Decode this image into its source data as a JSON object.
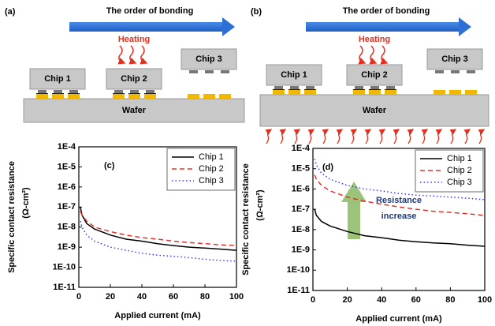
{
  "figure_panels": [
    {
      "label": "(a)",
      "arrow_text": "The order of bonding",
      "heating": "Heating",
      "chips": [
        "Chip 1",
        "Chip 2",
        "Chip 3"
      ],
      "wafer": "Wafer"
    },
    {
      "label": "(b)",
      "arrow_text": "The order of bonding",
      "heating": "Heating",
      "chips": [
        "Chip 1",
        "Chip 2",
        "Chip 3"
      ],
      "wafer": "Wafer"
    }
  ],
  "chart_data": [
    {
      "type": "line",
      "panel_label": "(c)",
      "xlabel": "Applied current (mA)",
      "ylabel": [
        "Specific contact resistance",
        "(Ω-cm²)"
      ],
      "x": [
        1,
        2,
        5,
        10,
        20,
        30,
        40,
        50,
        60,
        70,
        80,
        90,
        100
      ],
      "series": [
        {
          "name": "Chip 1",
          "color": "#000000",
          "line_style": "solid",
          "values": [
            1e-07,
            4e-08,
            1.5e-08,
            8e-09,
            4e-09,
            2.5e-09,
            2e-09,
            1.5e-09,
            1.2e-09,
            1e-09,
            9e-10,
            8e-10,
            7e-10
          ]
        },
        {
          "name": "Chip 2",
          "color": "#e8302a",
          "line_style": "dashed",
          "values": [
            6e-08,
            4e-08,
            2e-08,
            1e-08,
            6e-09,
            4e-09,
            3e-09,
            2.5e-09,
            2e-09,
            1.7e-09,
            1.5e-09,
            1.3e-09,
            1.2e-09
          ]
        },
        {
          "name": "Chip 3",
          "color": "#3a3aff",
          "line_style": "dotted",
          "values": [
            2e-08,
            1e-08,
            4e-09,
            2e-09,
            1e-09,
            7e-10,
            5e-10,
            4e-10,
            3.5e-10,
            3e-10,
            2.5e-10,
            2.2e-10,
            2e-10
          ]
        }
      ],
      "xlim": [
        0,
        100
      ],
      "xticks": [
        0,
        20,
        40,
        60,
        80,
        100
      ],
      "ylim": [
        1e-11,
        0.0001
      ],
      "log_y": true,
      "legend": "upper right",
      "yticks": [
        {
          "value": 1e-11,
          "label": "1E-11"
        },
        {
          "value": 1e-10,
          "label": "1E-10"
        },
        {
          "value": 1e-09,
          "label": "1E-9"
        },
        {
          "value": 1e-08,
          "label": "1E-8"
        },
        {
          "value": 1e-07,
          "label": "1E-7"
        },
        {
          "value": 1e-06,
          "label": "1E-6"
        },
        {
          "value": 1e-05,
          "label": "1E-5"
        },
        {
          "value": 0.0001,
          "label": "1E-4"
        }
      ]
    },
    {
      "type": "line",
      "panel_label": "(d)",
      "xlabel": "Applied current (mA)",
      "ylabel": [
        "Specific contact resistance",
        "(Ω-cm²)"
      ],
      "annotation": [
        "Resistance",
        "increase"
      ],
      "x": [
        1,
        2,
        5,
        10,
        20,
        30,
        40,
        50,
        60,
        70,
        80,
        90,
        100
      ],
      "series": [
        {
          "name": "Chip 1",
          "color": "#000000",
          "line_style": "solid",
          "values": [
            1e-07,
            5e-08,
            2.5e-08,
            1.5e-08,
            8e-09,
            5e-09,
            4e-09,
            3e-09,
            2.5e-09,
            2.2e-09,
            2e-09,
            1.7e-09,
            1.5e-09
          ]
        },
        {
          "name": "Chip 2",
          "color": "#e8302a",
          "line_style": "dashed",
          "values": [
            5e-06,
            3e-06,
            1.5e-06,
            8e-07,
            4e-07,
            2.5e-07,
            1.8e-07,
            1.3e-07,
            1e-07,
            8e-08,
            7e-08,
            6e-08,
            5e-08
          ]
        },
        {
          "name": "Chip 3",
          "color": "#3a3aff",
          "line_style": "dotted",
          "values": [
            3e-05,
            1.5e-05,
            6e-06,
            3e-06,
            1.5e-06,
            1e-06,
            8e-07,
            6e-07,
            5e-07,
            4.5e-07,
            4e-07,
            3.5e-07,
            3e-07
          ]
        }
      ],
      "xlim": [
        0,
        100
      ],
      "xticks": [
        0,
        20,
        40,
        60,
        80,
        100
      ],
      "ylim": [
        1e-11,
        0.0001
      ],
      "log_y": true,
      "legend": "upper right",
      "yticks": [
        {
          "value": 1e-11,
          "label": "1E-11"
        },
        {
          "value": 1e-10,
          "label": "1E-10"
        },
        {
          "value": 1e-09,
          "label": "1E-9"
        },
        {
          "value": 1e-08,
          "label": "1E-8"
        },
        {
          "value": 1e-07,
          "label": "1E-7"
        },
        {
          "value": 1e-06,
          "label": "1E-6"
        },
        {
          "value": 1e-05,
          "label": "1E-5"
        },
        {
          "value": 0.0001,
          "label": "1E-4"
        }
      ]
    }
  ]
}
